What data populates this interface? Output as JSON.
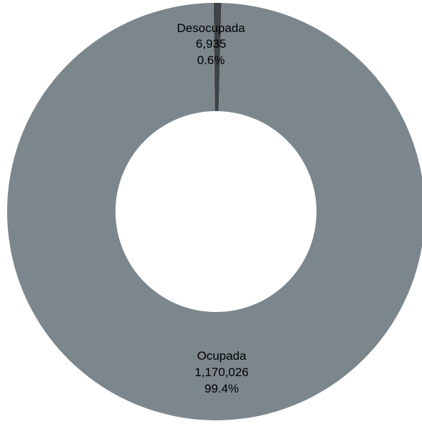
{
  "chart_data": {
    "type": "pie",
    "variant": "donut",
    "categories": [
      "Desocupada",
      "Ocupada"
    ],
    "values": [
      6935,
      1170026
    ],
    "value_labels": [
      "6,935",
      "1,170,026"
    ],
    "percent_labels": [
      "0.6%",
      "99.4%"
    ],
    "colors": [
      "#404345",
      "#7c868d"
    ],
    "title": "",
    "legend": "none"
  }
}
